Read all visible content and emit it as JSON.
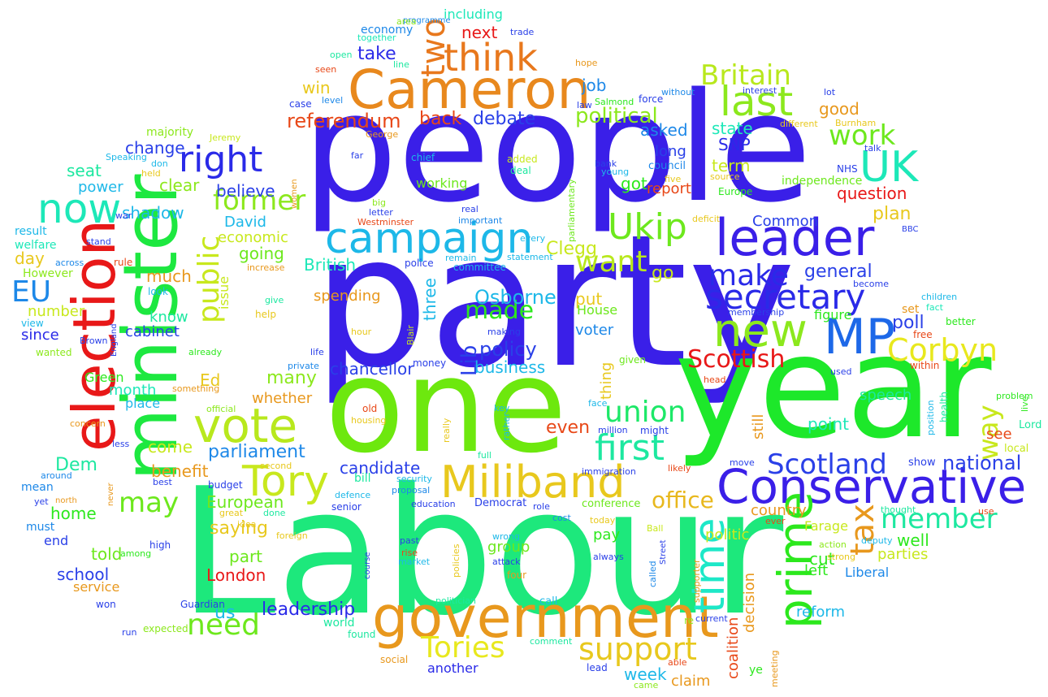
{
  "words": [
    {
      "text": "party",
      "color": "#3a1fe8"
    },
    {
      "text": "Labour",
      "color": "#1de87c"
    },
    {
      "text": "people",
      "color": "#3a1fe8"
    },
    {
      "text": "year",
      "color": "#1de82a"
    },
    {
      "text": "one",
      "color": "#6de80e"
    },
    {
      "text": "minister",
      "color": "#1de840"
    },
    {
      "text": "election",
      "color": "#e81818"
    },
    {
      "text": "government",
      "color": "#e8981d"
    },
    {
      "text": "Cameron",
      "color": "#e8881d"
    },
    {
      "text": "Conservative",
      "color": "#3a1fe8"
    },
    {
      "text": "Miliband",
      "color": "#e8c81d"
    },
    {
      "text": "vote",
      "color": "#b8e81d"
    },
    {
      "text": "campaign",
      "color": "#1db8e8"
    },
    {
      "text": "leader",
      "color": "#3a1fe8"
    },
    {
      "text": "MP",
      "color": "#1d68e8"
    },
    {
      "text": "prime",
      "color": "#2ce81d"
    },
    {
      "text": "time",
      "color": "#1de8c8"
    },
    {
      "text": "new",
      "color": "#8ce81d"
    },
    {
      "text": "think",
      "color": "#e8781d"
    },
    {
      "text": "Tory",
      "color": "#c8e81d"
    },
    {
      "text": "secretary",
      "color": "#2a2ae8"
    },
    {
      "text": "last",
      "color": "#8ce81d"
    },
    {
      "text": "UK",
      "color": "#1de8b8"
    },
    {
      "text": "first",
      "color": "#1de8a0"
    },
    {
      "text": "Scotland",
      "color": "#2a40e8"
    },
    {
      "text": "Corbyn",
      "color": "#e8e81d"
    },
    {
      "text": "Britain",
      "color": "#b8e81d"
    },
    {
      "text": "now",
      "color": "#1de8b8"
    },
    {
      "text": "right",
      "color": "#2a2ae8"
    },
    {
      "text": "public",
      "color": "#c8e81d"
    },
    {
      "text": "Ukip",
      "color": "#6de81d"
    },
    {
      "text": "union",
      "color": "#1de868"
    },
    {
      "text": "member",
      "color": "#1de8a0"
    },
    {
      "text": "support",
      "color": "#e8c81d"
    },
    {
      "text": "Tories",
      "color": "#e8e81d"
    },
    {
      "text": "need",
      "color": "#6de81d"
    },
    {
      "text": "Scottish",
      "color": "#e81818"
    },
    {
      "text": "want",
      "color": "#b8e81d"
    },
    {
      "text": "make",
      "color": "#2a2ae8"
    },
    {
      "text": "two",
      "color": "#e8781d"
    },
    {
      "text": "way",
      "color": "#c8e81d"
    },
    {
      "text": "tax",
      "color": "#e8981d"
    },
    {
      "text": "EU",
      "color": "#1d88e8"
    },
    {
      "text": "former",
      "color": "#8ce81d"
    },
    {
      "text": "work",
      "color": "#6de81d"
    },
    {
      "text": "made",
      "color": "#2ce81d"
    },
    {
      "text": "office",
      "color": "#e8b81d"
    },
    {
      "text": "may",
      "color": "#6de81d"
    },
    {
      "text": "referendum",
      "color": "#e84818"
    },
    {
      "text": "political",
      "color": "#8ce81d"
    },
    {
      "text": "policy",
      "color": "#2a40e8"
    },
    {
      "text": "Osborne",
      "color": "#1db8e8"
    },
    {
      "text": "national",
      "color": "#2a40e8"
    },
    {
      "text": "Lib",
      "color": "#2a40e8"
    },
    {
      "text": "Dem",
      "color": "#1de8a0"
    },
    {
      "text": "leadership",
      "color": "#2a2ae8"
    },
    {
      "text": "parliament",
      "color": "#1d88e8"
    },
    {
      "text": "candidate",
      "color": "#2a40e8"
    },
    {
      "text": "chancellor",
      "color": "#2a40e8"
    },
    {
      "text": "business",
      "color": "#1db8e8"
    },
    {
      "text": "shadow",
      "color": "#1db8e8"
    },
    {
      "text": "British",
      "color": "#1de8b8"
    },
    {
      "text": "European",
      "color": "#6de81d"
    },
    {
      "text": "London",
      "color": "#e81818"
    },
    {
      "text": "economic",
      "color": "#c8e81d"
    },
    {
      "text": "going",
      "color": "#6de81d"
    },
    {
      "text": "debate",
      "color": "#2a40e8"
    },
    {
      "text": "take",
      "color": "#2a2ae8"
    },
    {
      "text": "next",
      "color": "#e81818"
    },
    {
      "text": "back",
      "color": "#e84818"
    },
    {
      "text": "poll",
      "color": "#2a40e8"
    },
    {
      "text": "Clegg",
      "color": "#c8e81d"
    },
    {
      "text": "win",
      "color": "#e8c81d"
    },
    {
      "text": "job",
      "color": "#1d88e8"
    },
    {
      "text": "asked",
      "color": "#1d88e8"
    },
    {
      "text": "state",
      "color": "#1de8b8"
    },
    {
      "text": "SNP",
      "color": "#2a2ae8"
    },
    {
      "text": "good",
      "color": "#e8981d"
    },
    {
      "text": "question",
      "color": "#e81818"
    },
    {
      "text": "general",
      "color": "#2a40e8"
    },
    {
      "text": "plan",
      "color": "#e8c81d"
    },
    {
      "text": "cabinet",
      "color": "#2a40e8"
    },
    {
      "text": "know",
      "color": "#1de8a0"
    },
    {
      "text": "much",
      "color": "#e8981d"
    },
    {
      "text": "many",
      "color": "#8ce81d"
    },
    {
      "text": "Ed",
      "color": "#e8c81d"
    },
    {
      "text": "saying",
      "color": "#e8c81d"
    },
    {
      "text": "home",
      "color": "#2ce81d"
    },
    {
      "text": "told",
      "color": "#6de81d"
    },
    {
      "text": "school",
      "color": "#2a40e8"
    },
    {
      "text": "part",
      "color": "#6de81d"
    },
    {
      "text": "come",
      "color": "#c8e81d"
    },
    {
      "text": "benefit",
      "color": "#e8981d"
    },
    {
      "text": "month",
      "color": "#1de8b8"
    },
    {
      "text": "whether",
      "color": "#e8981d"
    },
    {
      "text": "country",
      "color": "#e8981d"
    },
    {
      "text": "politic",
      "color": "#c8e81d"
    },
    {
      "text": "well",
      "color": "#2ce81d"
    },
    {
      "text": "parties",
      "color": "#c8e81d"
    },
    {
      "text": "Farage",
      "color": "#c8e81d"
    },
    {
      "text": "cut",
      "color": "#2ce81d"
    },
    {
      "text": "left",
      "color": "#2ce81d"
    },
    {
      "text": "reform",
      "color": "#1db8e8"
    },
    {
      "text": "Liberal",
      "color": "#1d88e8"
    },
    {
      "text": "point",
      "color": "#1de8b8"
    },
    {
      "text": "speech",
      "color": "#1de8a0"
    },
    {
      "text": "see",
      "color": "#e84818"
    },
    {
      "text": "still",
      "color": "#e8981d"
    },
    {
      "text": "even",
      "color": "#e84818"
    },
    {
      "text": "week",
      "color": "#1db8e8"
    },
    {
      "text": "claim",
      "color": "#e8981d"
    },
    {
      "text": "voter",
      "color": "#1d88e8"
    },
    {
      "text": "put",
      "color": "#e8c81d"
    },
    {
      "text": "pay",
      "color": "#2ce81d"
    },
    {
      "text": "group",
      "color": "#6de81d"
    },
    {
      "text": "change",
      "color": "#2a40e8"
    },
    {
      "text": "seat",
      "color": "#1de8a0"
    },
    {
      "text": "power",
      "color": "#1db8e8"
    },
    {
      "text": "clear",
      "color": "#8ce81d"
    },
    {
      "text": "believe",
      "color": "#2a40e8"
    },
    {
      "text": "David",
      "color": "#1db8e8"
    },
    {
      "text": "day",
      "color": "#e8c81d"
    },
    {
      "text": "number",
      "color": "#c8e81d"
    },
    {
      "text": "since",
      "color": "#2a2ae8"
    },
    {
      "text": "us",
      "color": "#1db8e8"
    },
    {
      "text": "three",
      "color": "#1db8e8"
    },
    {
      "text": "spending",
      "color": "#e8981d"
    },
    {
      "text": "House",
      "color": "#6de81d"
    },
    {
      "text": "go",
      "color": "#c8e81d"
    },
    {
      "text": "long",
      "color": "#2a40e8"
    },
    {
      "text": "term",
      "color": "#c8e81d"
    },
    {
      "text": "got",
      "color": "#2ce81d"
    },
    {
      "text": "report",
      "color": "#e84818"
    },
    {
      "text": "Common",
      "color": "#2a40e8"
    },
    {
      "text": "issue",
      "color": "#c8e81d"
    },
    {
      "text": "thing",
      "color": "#e8c81d"
    },
    {
      "text": "coalition",
      "color": "#e84818"
    },
    {
      "text": "decision",
      "color": "#e8981d"
    },
    {
      "text": "working",
      "color": "#6de81d"
    },
    {
      "text": "place",
      "color": "#1db8e8"
    },
    {
      "text": "Green",
      "color": "#2ce81d"
    },
    {
      "text": "economy",
      "color": "#1d88e8"
    },
    {
      "text": "including",
      "color": "#1de8b8"
    },
    {
      "text": "majority",
      "color": "#8ce81d"
    },
    {
      "text": "end",
      "color": "#2a40e8"
    },
    {
      "text": "mean",
      "color": "#1d88e8"
    },
    {
      "text": "must",
      "color": "#1d88e8"
    },
    {
      "text": "result",
      "color": "#1db8e8"
    },
    {
      "text": "welfare",
      "color": "#1de8b8"
    },
    {
      "text": "However",
      "color": "#8ce81d"
    },
    {
      "text": "view",
      "color": "#1db8e8"
    },
    {
      "text": "wanted",
      "color": "#8ce81d"
    },
    {
      "text": "service",
      "color": "#e8981d"
    },
    {
      "text": "won",
      "color": "#2a40e8"
    },
    {
      "text": "expected",
      "color": "#8ce81d"
    },
    {
      "text": "Guardian",
      "color": "#2a40e8"
    },
    {
      "text": "world",
      "color": "#1de8a0"
    },
    {
      "text": "found",
      "color": "#1de8a0"
    },
    {
      "text": "social",
      "color": "#e8981d"
    },
    {
      "text": "another",
      "color": "#2a2ae8"
    },
    {
      "text": "lead",
      "color": "#2a40e8"
    },
    {
      "text": "able",
      "color": "#e84818"
    },
    {
      "text": "came",
      "color": "#8ce81d"
    },
    {
      "text": "ye",
      "color": "#2ce81d"
    },
    {
      "text": "meeting",
      "color": "#e8981d"
    },
    {
      "text": "re",
      "color": "#8ce81d"
    },
    {
      "text": "current",
      "color": "#2a40e8"
    },
    {
      "text": "supporter",
      "color": "#e8981d"
    },
    {
      "text": "Street",
      "color": "#2a40e8"
    },
    {
      "text": "called",
      "color": "#1d88e8"
    },
    {
      "text": "Ball",
      "color": "#c8e81d"
    },
    {
      "text": "always",
      "color": "#2a40e8"
    },
    {
      "text": "deputy",
      "color": "#1db8e8"
    },
    {
      "text": "action",
      "color": "#8ce81d"
    },
    {
      "text": "strong",
      "color": "#e8c81d"
    },
    {
      "text": "use",
      "color": "#e84818"
    },
    {
      "text": "thought",
      "color": "#1de8a0"
    },
    {
      "text": "local",
      "color": "#c8e81d"
    },
    {
      "text": "Lord",
      "color": "#1de8a0"
    },
    {
      "text": "live",
      "color": "#2ce81d"
    },
    {
      "text": "problem",
      "color": "#2ce81d"
    },
    {
      "text": "health",
      "color": "#1de8a0"
    },
    {
      "text": "position",
      "color": "#1db8e8"
    },
    {
      "text": "used",
      "color": "#2a40e8"
    },
    {
      "text": "head",
      "color": "#e84818"
    },
    {
      "text": "within",
      "color": "#e84818"
    },
    {
      "text": "free",
      "color": "#e84818"
    },
    {
      "text": "set",
      "color": "#e8981d"
    },
    {
      "text": "fact",
      "color": "#1de8b8"
    },
    {
      "text": "better",
      "color": "#2ce81d"
    },
    {
      "text": "become",
      "color": "#2a40e8"
    },
    {
      "text": "children",
      "color": "#1db8e8"
    },
    {
      "text": "BBC",
      "color": "#2a40e8"
    },
    {
      "text": "figure",
      "color": "#2ce81d"
    },
    {
      "text": "membership",
      "color": "#2a40e8"
    },
    {
      "text": "independence",
      "color": "#6de81d"
    },
    {
      "text": "NHS",
      "color": "#2a40e8"
    },
    {
      "text": "talk",
      "color": "#2a40e8"
    },
    {
      "text": "Burnham",
      "color": "#e8c81d"
    },
    {
      "text": "different",
      "color": "#e8c81d"
    },
    {
      "text": "lot",
      "color": "#2a40e8"
    },
    {
      "text": "interest",
      "color": "#2a40e8"
    },
    {
      "text": "hope",
      "color": "#e8981d"
    },
    {
      "text": "trade",
      "color": "#2a40e8"
    },
    {
      "text": "programme",
      "color": "#1d88e8"
    },
    {
      "text": "area",
      "color": "#8ce81d"
    },
    {
      "text": "together",
      "color": "#1de8b8"
    },
    {
      "text": "open",
      "color": "#1de8a0"
    },
    {
      "text": "line",
      "color": "#1de8a0"
    },
    {
      "text": "seen",
      "color": "#e84818"
    },
    {
      "text": "case",
      "color": "#2a40e8"
    },
    {
      "text": "level",
      "color": "#1d88e8"
    },
    {
      "text": "law",
      "color": "#2a40e8"
    },
    {
      "text": "Salmond",
      "color": "#2ce81d"
    },
    {
      "text": "force",
      "color": "#2a40e8"
    },
    {
      "text": "without",
      "color": "#1d88e8"
    },
    {
      "text": "council",
      "color": "#1d88e8"
    },
    {
      "text": "five",
      "color": "#e8c81d"
    },
    {
      "text": "source",
      "color": "#e8c81d"
    },
    {
      "text": "Europe",
      "color": "#2ce81d"
    },
    {
      "text": "bank",
      "color": "#2a40e8"
    },
    {
      "text": "young",
      "color": "#1db8e8"
    },
    {
      "text": "parliamentary",
      "color": "#6de81d"
    },
    {
      "text": "added",
      "color": "#c8e81d"
    },
    {
      "text": "deal",
      "color": "#1de8a0"
    },
    {
      "text": "chief",
      "color": "#1db8e8"
    },
    {
      "text": "George",
      "color": "#e8981d"
    },
    {
      "text": "Jeremy",
      "color": "#c8e81d"
    },
    {
      "text": "Speaking",
      "color": "#1db8e8"
    },
    {
      "text": "don",
      "color": "#1db8e8"
    },
    {
      "text": "held",
      "color": "#e8c81d"
    },
    {
      "text": "far",
      "color": "#2a40e8"
    },
    {
      "text": "women",
      "color": "#e8981d"
    },
    {
      "text": "big",
      "color": "#8ce81d"
    },
    {
      "text": "real",
      "color": "#2a40e8"
    },
    {
      "text": "letter",
      "color": "#2a40e8"
    },
    {
      "text": "Westminster",
      "color": "#e84818"
    },
    {
      "text": "important",
      "color": "#1d88e8"
    },
    {
      "text": "deficit",
      "color": "#e8c81d"
    },
    {
      "text": "every",
      "color": "#1db8e8"
    },
    {
      "text": "statement",
      "color": "#1db8e8"
    },
    {
      "text": "remain",
      "color": "#1db8e8"
    },
    {
      "text": "committee",
      "color": "#1db8e8"
    },
    {
      "text": "police",
      "color": "#2a40e8"
    },
    {
      "text": "increase",
      "color": "#e8981d"
    },
    {
      "text": "rule",
      "color": "#e84818"
    },
    {
      "text": "across",
      "color": "#1d88e8"
    },
    {
      "text": "stand",
      "color": "#2a40e8"
    },
    {
      "text": "war",
      "color": "#2a40e8"
    },
    {
      "text": "give",
      "color": "#1de8a0"
    },
    {
      "text": "help",
      "color": "#e8c81d"
    },
    {
      "text": "look",
      "color": "#1db8e8"
    },
    {
      "text": "hour",
      "color": "#e8c81d"
    },
    {
      "text": "making",
      "color": "#2a40e8"
    },
    {
      "text": "Blair",
      "color": "#c8e81d"
    },
    {
      "text": "already",
      "color": "#2ce81d"
    },
    {
      "text": "Brown",
      "color": "#2a40e8"
    },
    {
      "text": "England",
      "color": "#2a40e8"
    },
    {
      "text": "life",
      "color": "#2a40e8"
    },
    {
      "text": "private",
      "color": "#1d88e8"
    },
    {
      "text": "money",
      "color": "#2a40e8"
    },
    {
      "text": "given",
      "color": "#6de81d"
    },
    {
      "text": "something",
      "color": "#e8981d"
    },
    {
      "text": "official",
      "color": "#8ce81d"
    },
    {
      "text": "old",
      "color": "#e84818"
    },
    {
      "text": "housing",
      "color": "#e8c81d"
    },
    {
      "text": "key",
      "color": "#1db8e8"
    },
    {
      "text": "face",
      "color": "#1db8e8"
    },
    {
      "text": "million",
      "color": "#2a40e8"
    },
    {
      "text": "rather",
      "color": "#1db8e8"
    },
    {
      "text": "might",
      "color": "#2a40e8"
    },
    {
      "text": "full",
      "color": "#1de8a0"
    },
    {
      "text": "really",
      "color": "#e8c81d"
    },
    {
      "text": "concern",
      "color": "#e8981d"
    },
    {
      "text": "less",
      "color": "#2a40e8"
    },
    {
      "text": "around",
      "color": "#1d88e8"
    },
    {
      "text": "second",
      "color": "#e8c81d"
    },
    {
      "text": "best",
      "color": "#2a40e8"
    },
    {
      "text": "budget",
      "color": "#2a40e8"
    },
    {
      "text": "bill",
      "color": "#1de8a0"
    },
    {
      "text": "security",
      "color": "#1db8e8"
    },
    {
      "text": "proposal",
      "color": "#1d88e8"
    },
    {
      "text": "immigration",
      "color": "#2a40e8"
    },
    {
      "text": "likely",
      "color": "#e84818"
    },
    {
      "text": "move",
      "color": "#2a40e8"
    },
    {
      "text": "show",
      "color": "#2a40e8"
    },
    {
      "text": "north",
      "color": "#e8981d"
    },
    {
      "text": "yet",
      "color": "#2a40e8"
    },
    {
      "text": "defence",
      "color": "#1db8e8"
    },
    {
      "text": "done",
      "color": "#1de8a0"
    },
    {
      "text": "great",
      "color": "#e8c81d"
    },
    {
      "text": "senior",
      "color": "#2a40e8"
    },
    {
      "text": "education",
      "color": "#2a40e8"
    },
    {
      "text": "Democrat",
      "color": "#2a40e8"
    },
    {
      "text": "role",
      "color": "#2a40e8"
    },
    {
      "text": "cost",
      "color": "#1d88e8"
    },
    {
      "text": "conference",
      "color": "#6de81d"
    },
    {
      "text": "today",
      "color": "#e8c81d"
    },
    {
      "text": "ever",
      "color": "#e84818"
    },
    {
      "text": "never",
      "color": "#e8981d"
    },
    {
      "text": "among",
      "color": "#2ce81d"
    },
    {
      "text": "high",
      "color": "#2a40e8"
    },
    {
      "text": "idea",
      "color": "#e8c81d"
    },
    {
      "text": "foreign",
      "color": "#e8c81d"
    },
    {
      "text": "past",
      "color": "#2a40e8"
    },
    {
      "text": "rise",
      "color": "#e84818"
    },
    {
      "text": "market",
      "color": "#1db8e8"
    },
    {
      "text": "policies",
      "color": "#e8c81d"
    },
    {
      "text": "course",
      "color": "#2a40e8"
    },
    {
      "text": "wrong",
      "color": "#1db8e8"
    },
    {
      "text": "attack",
      "color": "#2a40e8"
    },
    {
      "text": "four",
      "color": "#e8981d"
    },
    {
      "text": "politician",
      "color": "#1de8a0"
    },
    {
      "text": "call",
      "color": "#1db8e8"
    },
    {
      "text": "comment",
      "color": "#1de8a0"
    },
    {
      "text": "run",
      "color": "#2a40e8"
    }
  ]
}
